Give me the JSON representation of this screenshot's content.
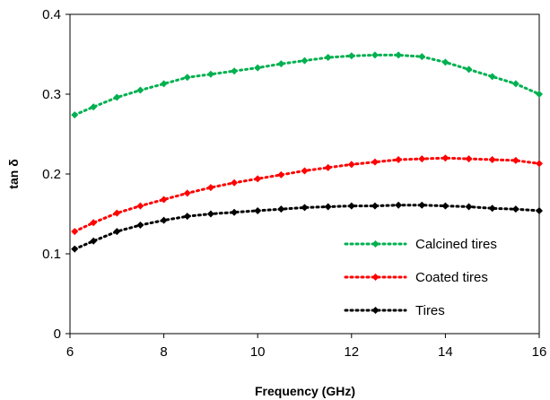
{
  "chart_data": {
    "type": "line",
    "xlabel": "Frequency (GHz)",
    "ylabel": "tan δ",
    "xlim": [
      6,
      16
    ],
    "ylim": [
      0,
      0.4
    ],
    "x_ticks": [
      "6",
      "8",
      "10",
      "12",
      "14",
      "16"
    ],
    "y_ticks": [
      "0",
      "0.1",
      "0.2",
      "0.3",
      "0.4"
    ],
    "grid": false,
    "legend_position": "bottom-right",
    "x": [
      6.1,
      6.5,
      7.0,
      7.5,
      8.0,
      8.5,
      9.0,
      9.5,
      10.0,
      10.5,
      11.0,
      11.5,
      12.0,
      12.5,
      13.0,
      13.5,
      14.0,
      14.5,
      15.0,
      15.5,
      16.0
    ],
    "series": [
      {
        "name": "Calcined tires",
        "color": "#00b050",
        "values": [
          0.274,
          0.284,
          0.296,
          0.305,
          0.313,
          0.321,
          0.325,
          0.329,
          0.333,
          0.338,
          0.342,
          0.346,
          0.348,
          0.349,
          0.349,
          0.347,
          0.34,
          0.331,
          0.322,
          0.313,
          0.3
        ]
      },
      {
        "name": "Coated tires",
        "color": "#ff0000",
        "values": [
          0.128,
          0.139,
          0.151,
          0.16,
          0.168,
          0.176,
          0.183,
          0.189,
          0.194,
          0.199,
          0.204,
          0.208,
          0.212,
          0.215,
          0.218,
          0.219,
          0.22,
          0.219,
          0.218,
          0.217,
          0.213
        ]
      },
      {
        "name": "Tires",
        "color": "#000000",
        "values": [
          0.106,
          0.116,
          0.128,
          0.136,
          0.142,
          0.147,
          0.15,
          0.152,
          0.154,
          0.156,
          0.158,
          0.159,
          0.16,
          0.16,
          0.161,
          0.161,
          0.16,
          0.159,
          0.157,
          0.156,
          0.154
        ]
      }
    ]
  }
}
